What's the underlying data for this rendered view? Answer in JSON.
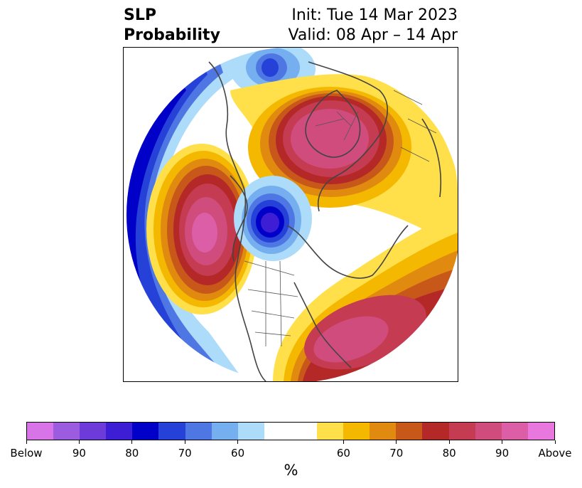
{
  "header": {
    "title_line1": "SLP",
    "title_line2": "Probability",
    "init_text": "Init: Tue 14 Mar 2023",
    "valid_text": "Valid: 08 Apr – 14 Apr"
  },
  "colorbar": {
    "colors": [
      "#d974e8",
      "#9b5ce0",
      "#6c3bd9",
      "#3d1ed4",
      "#0000c8",
      "#2541d8",
      "#4f77e4",
      "#76afef",
      "#addcfa",
      "#ffffff",
      "#ffe04a",
      "#f4b800",
      "#e08a10",
      "#c8571a",
      "#b42828",
      "#c43b52",
      "#d04c7c",
      "#dc5ea6",
      "#e878de"
    ],
    "tick_labels": [
      "Below",
      "90",
      "80",
      "70",
      "60",
      "60",
      "70",
      "80",
      "90",
      "Above"
    ],
    "label": "%"
  },
  "map": {
    "projection": "north-polar-stereographic",
    "field": "SLP probability",
    "features": [
      {
        "name": "above-normal-siberia",
        "category": "Above",
        "level": "90"
      },
      {
        "name": "above-normal-north-pacific",
        "category": "Above",
        "level": "90"
      },
      {
        "name": "above-normal-north-atlantic",
        "category": "Above",
        "level": "90"
      },
      {
        "name": "below-normal-arctic-canada",
        "category": "Below",
        "level": "80"
      },
      {
        "name": "below-normal-east-pacific",
        "category": "Below",
        "level": "80"
      },
      {
        "name": "below-normal-europe",
        "category": "Below",
        "level": "70"
      }
    ]
  }
}
